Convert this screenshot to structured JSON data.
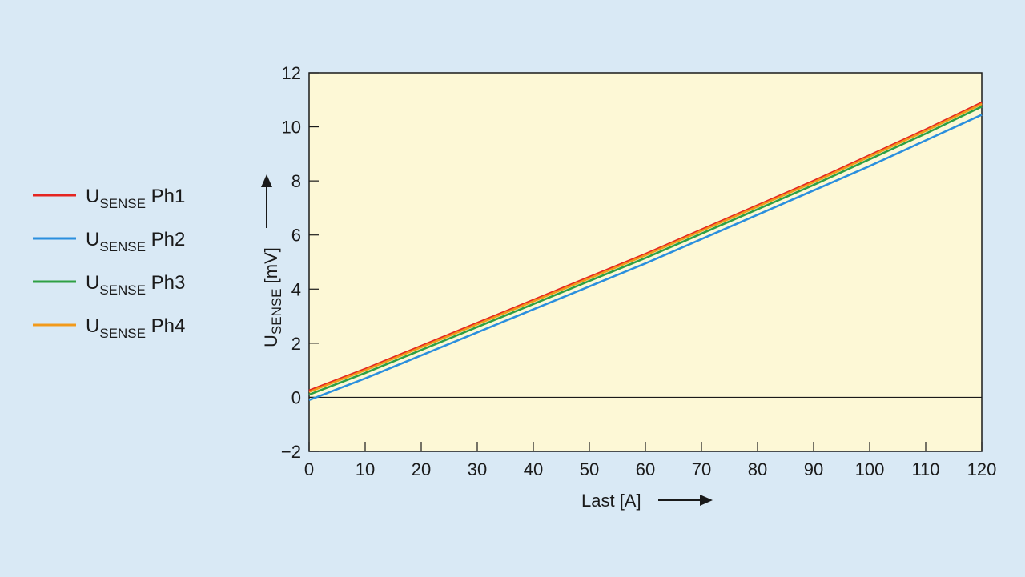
{
  "chart_data": {
    "type": "line",
    "xlabel": "Last [A]",
    "ylabel": {
      "base": "U",
      "sub": "SENSE",
      "rest": " [mV]"
    },
    "xlim": [
      0,
      120
    ],
    "ylim": [
      -2,
      12
    ],
    "xticks": [
      0,
      10,
      20,
      30,
      40,
      50,
      60,
      70,
      80,
      90,
      100,
      110,
      120
    ],
    "yticks": [
      -2,
      0,
      2,
      4,
      6,
      8,
      10,
      12
    ],
    "ytick_labels": [
      "−2",
      "0",
      "2",
      "4",
      "6",
      "8",
      "10",
      "12"
    ],
    "grid": false,
    "zero_line": true,
    "plot_background": "#fdf8d6",
    "page_background": "#d9e9f5",
    "legend_position": "left",
    "series": [
      {
        "name": "Ph1",
        "label_base": "U",
        "label_sub": "SENSE",
        "label_rest": " Ph1",
        "color": "#e52521",
        "x": [
          0,
          10,
          20,
          30,
          40,
          50,
          60,
          70,
          80,
          90,
          100,
          110,
          120
        ],
        "y": [
          0.25,
          1.05,
          1.9,
          2.75,
          3.6,
          4.45,
          5.3,
          6.2,
          7.1,
          8.0,
          8.95,
          9.9,
          10.9
        ]
      },
      {
        "name": "Ph2",
        "label_base": "U",
        "label_sub": "SENSE",
        "label_rest": " Ph2",
        "color": "#2a8fde",
        "x": [
          0,
          10,
          20,
          30,
          40,
          50,
          60,
          70,
          80,
          90,
          100,
          110,
          120
        ],
        "y": [
          -0.1,
          0.7,
          1.55,
          2.4,
          3.25,
          4.1,
          4.95,
          5.85,
          6.75,
          7.65,
          8.55,
          9.5,
          10.45
        ]
      },
      {
        "name": "Ph3",
        "label_base": "U",
        "label_sub": "SENSE",
        "label_rest": " Ph3",
        "color": "#2ea043",
        "x": [
          0,
          10,
          20,
          30,
          40,
          50,
          60,
          70,
          80,
          90,
          100,
          110,
          120
        ],
        "y": [
          0.1,
          0.9,
          1.75,
          2.6,
          3.45,
          4.3,
          5.15,
          6.05,
          6.95,
          7.85,
          8.8,
          9.75,
          10.75
        ]
      },
      {
        "name": "Ph4",
        "label_base": "U",
        "label_sub": "SENSE",
        "label_rest": " Ph4",
        "color": "#f29a1b",
        "x": [
          0,
          10,
          20,
          30,
          40,
          50,
          60,
          70,
          80,
          90,
          100,
          110,
          120
        ],
        "y": [
          0.2,
          1.0,
          1.85,
          2.7,
          3.55,
          4.4,
          5.25,
          6.15,
          7.05,
          7.95,
          8.9,
          9.85,
          10.85
        ]
      }
    ]
  }
}
